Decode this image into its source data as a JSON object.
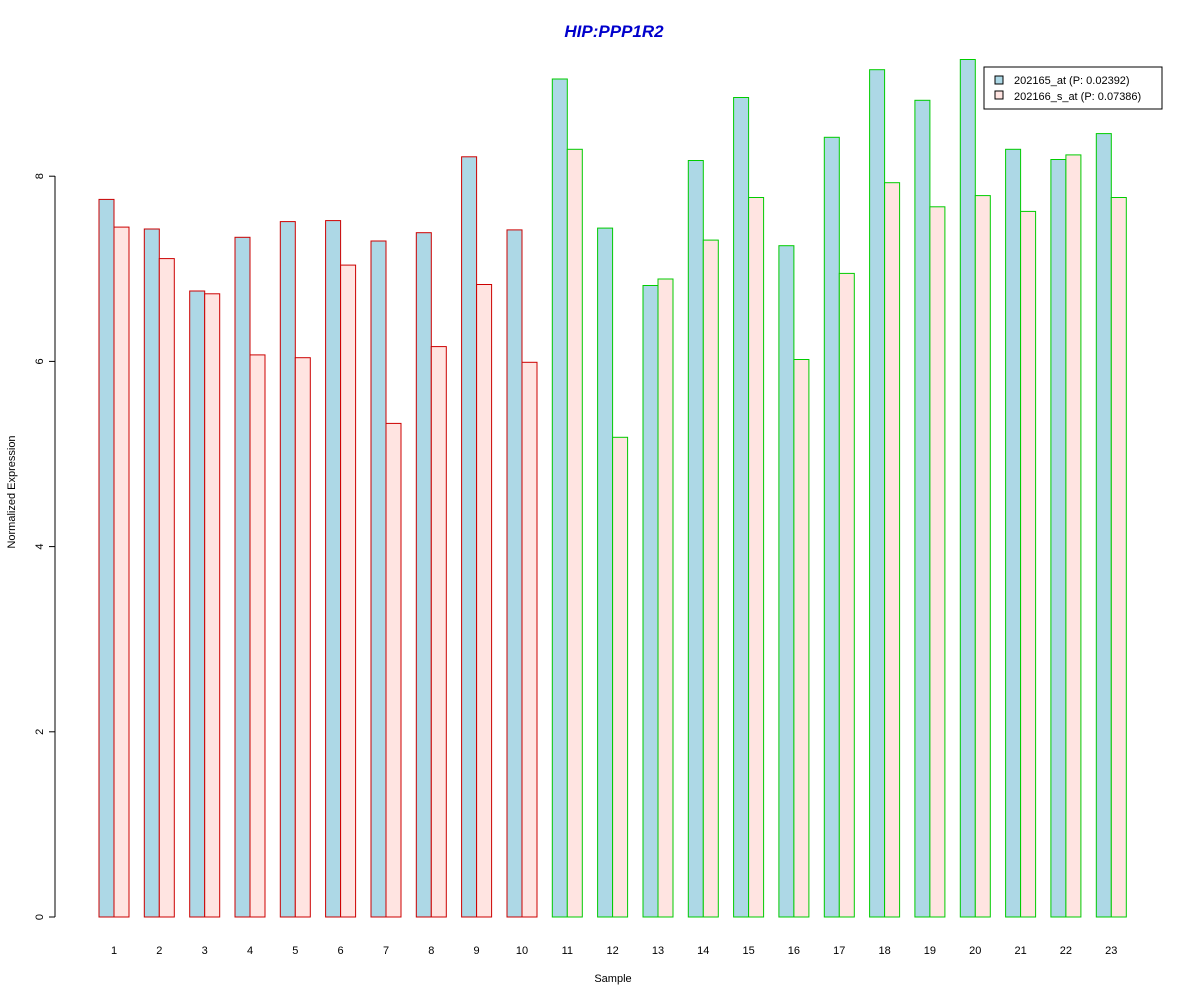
{
  "chart_data": {
    "type": "bar",
    "title": "HIP:PPP1R2",
    "xlabel": "Sample",
    "ylabel": "Normalized Expression",
    "ylim": [
      0,
      9.25
    ],
    "yticks": [
      0,
      2,
      4,
      6,
      8
    ],
    "grid": false,
    "legend_position": "top-right",
    "categories": [
      "1",
      "2",
      "3",
      "4",
      "5",
      "6",
      "7",
      "8",
      "9",
      "10",
      "11",
      "12",
      "13",
      "14",
      "15",
      "16",
      "17",
      "18",
      "19",
      "20",
      "21",
      "22",
      "23"
    ],
    "groups": [
      "red",
      "red",
      "red",
      "red",
      "red",
      "red",
      "red",
      "red",
      "red",
      "red",
      "green",
      "green",
      "green",
      "green",
      "green",
      "green",
      "green",
      "green",
      "green",
      "green",
      "green",
      "green",
      "green"
    ],
    "series": [
      {
        "name": "202165_at (P: 0.02392)",
        "fill": "#add8e6",
        "values": [
          7.75,
          7.43,
          6.76,
          7.34,
          7.51,
          7.52,
          7.3,
          7.39,
          8.21,
          7.42,
          9.05,
          7.44,
          6.82,
          8.17,
          8.85,
          7.25,
          8.42,
          9.15,
          8.82,
          9.26,
          8.29,
          8.18,
          8.46
        ]
      },
      {
        "name": "202166_s_at (P: 0.07386)",
        "fill": "#ffe4e1",
        "values": [
          7.45,
          7.11,
          6.73,
          6.07,
          6.04,
          7.04,
          5.33,
          6.16,
          6.83,
          5.99,
          8.29,
          5.18,
          6.89,
          7.31,
          7.77,
          6.02,
          6.95,
          7.93,
          7.67,
          7.79,
          7.62,
          8.23,
          7.77
        ]
      }
    ]
  },
  "colors": {
    "title": "#0000cc",
    "group_red_border": "#cc0000",
    "group_green_border": "#00cc00",
    "axis": "#000000"
  }
}
